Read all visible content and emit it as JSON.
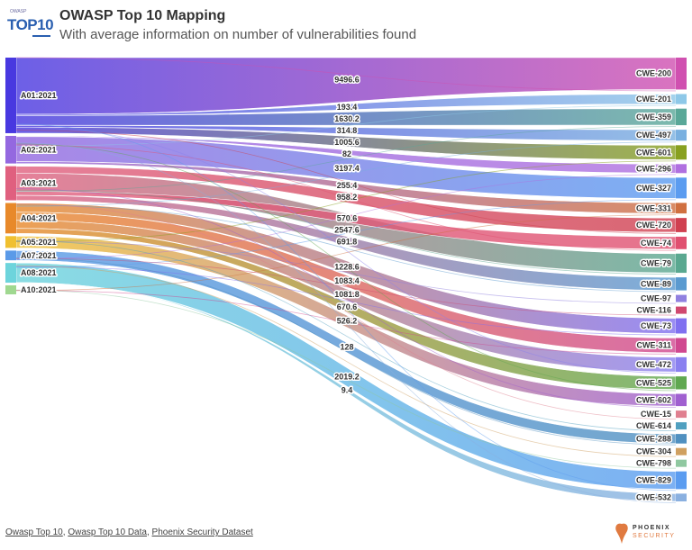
{
  "header": {
    "logo_small": "OWASP",
    "logo_big": "TOP10",
    "title": "OWASP Top 10 Mapping",
    "subtitle": "With average information on number of vulnerabilities found"
  },
  "footer": {
    "links": [
      "Owasp Top 10",
      "Owasp Top 10 Data",
      "Phoenix Security Dataset"
    ],
    "brand_line1": "PHOENIX",
    "brand_line2": "SECURITY"
  },
  "colors": {
    "accent_brand": "#e07a40",
    "text": "#333333"
  },
  "diagram": {
    "type": "sankey",
    "sources": [
      {
        "id": "A01:2021",
        "color": "#4838e0"
      },
      {
        "id": "A02:2021",
        "color": "#9468e0"
      },
      {
        "id": "A03:2021",
        "color": "#e0607f"
      },
      {
        "id": "A04:2021",
        "color": "#e8892a"
      },
      {
        "id": "A05:2021",
        "color": "#f0c030"
      },
      {
        "id": "A07:2021",
        "color": "#5a9ae8"
      },
      {
        "id": "A08:2021",
        "color": "#6dd4dc"
      },
      {
        "id": "A10:2021",
        "color": "#a0d890"
      }
    ],
    "targets": [
      {
        "id": "CWE-200",
        "color": "#d050b0"
      },
      {
        "id": "CWE-201",
        "color": "#8ec8e8"
      },
      {
        "id": "CWE-359",
        "color": "#5aa898"
      },
      {
        "id": "CWE-497",
        "color": "#7ab0e0"
      },
      {
        "id": "CWE-601",
        "color": "#88a020"
      },
      {
        "id": "CWE-296",
        "color": "#b070e0"
      },
      {
        "id": "CWE-327",
        "color": "#5b9cf0"
      },
      {
        "id": "CWE-331",
        "color": "#d07040"
      },
      {
        "id": "CWE-720",
        "color": "#d04050"
      },
      {
        "id": "CWE-74",
        "color": "#e05070"
      },
      {
        "id": "CWE-79",
        "color": "#5aa890"
      },
      {
        "id": "CWE-89",
        "color": "#5a9ad0"
      },
      {
        "id": "CWE-97",
        "color": "#9080e0"
      },
      {
        "id": "CWE-116",
        "color": "#d04870"
      },
      {
        "id": "CWE-73",
        "color": "#8070f0"
      },
      {
        "id": "CWE-311",
        "color": "#d04890"
      },
      {
        "id": "CWE-472",
        "color": "#8a80f0"
      },
      {
        "id": "CWE-525",
        "color": "#60a850"
      },
      {
        "id": "CWE-602",
        "color": "#a060d0"
      },
      {
        "id": "CWE-15",
        "color": "#e08090"
      },
      {
        "id": "CWE-614",
        "color": "#50a0c0"
      },
      {
        "id": "CWE-288",
        "color": "#5090c0"
      },
      {
        "id": "CWE-304",
        "color": "#d0a060"
      },
      {
        "id": "CWE-798",
        "color": "#90c8a0"
      },
      {
        "id": "CWE-829",
        "color": "#5b9cf0"
      },
      {
        "id": "CWE-532",
        "color": "#8ab0e0"
      }
    ],
    "links": [
      {
        "source": "A01:2021",
        "target": "CWE-200",
        "value": 9496.6
      },
      {
        "source": "A01:2021",
        "target": "CWE-201",
        "value": 193.4
      },
      {
        "source": "A01:2021",
        "target": "CWE-359",
        "value": 1630.2
      },
      {
        "source": "A01:2021",
        "target": "CWE-497",
        "value": 314.8
      },
      {
        "source": "A01:2021",
        "target": "CWE-601",
        "value": 1005.6
      },
      {
        "source": "A02:2021",
        "target": "CWE-296",
        "value": 82
      },
      {
        "source": "A02:2021",
        "target": "CWE-327",
        "value": 3197.4
      },
      {
        "source": "A02:2021",
        "target": "CWE-331",
        "value": 255.4
      },
      {
        "source": "A03:2021",
        "target": "CWE-720",
        "value": 958.2
      },
      {
        "source": "A03:2021",
        "target": "CWE-79",
        "value": 2547.6
      },
      {
        "source": "A03:2021",
        "target": "CWE-74",
        "value": 570.6
      },
      {
        "source": "A03:2021",
        "target": "CWE-89",
        "value": 691.8
      },
      {
        "source": "A04:2021",
        "target": "CWE-73",
        "value": 1228.6
      },
      {
        "source": "A04:2021",
        "target": "CWE-311",
        "value": 1083.4
      },
      {
        "source": "A04:2021",
        "target": "CWE-472",
        "value": 1081.8
      },
      {
        "source": "A04:2021",
        "target": "CWE-525",
        "value": 670.6
      },
      {
        "source": "A05:2021",
        "target": "CWE-602",
        "value": 526.2
      },
      {
        "source": "A07:2021",
        "target": "CWE-288",
        "value": 128
      },
      {
        "source": "A08:2021",
        "target": "CWE-829",
        "value": 2019.2
      },
      {
        "source": "A08:2021",
        "target": "CWE-532",
        "value": 9.4
      }
    ]
  }
}
